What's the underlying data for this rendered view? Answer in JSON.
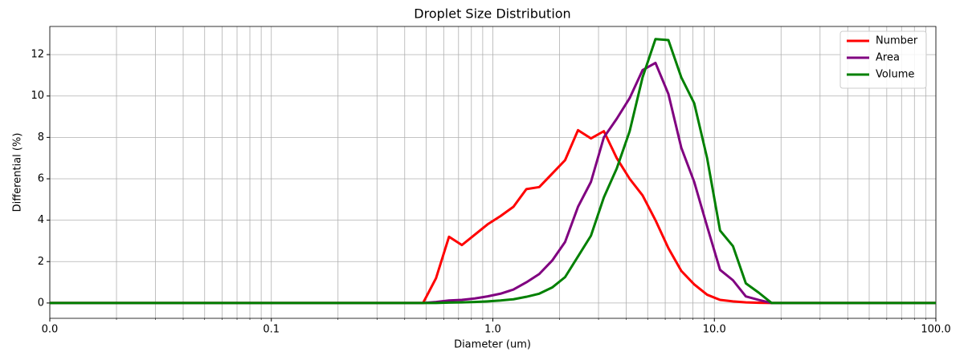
{
  "chart_data": {
    "type": "line",
    "title": "Droplet Size Distribution",
    "x_label": "Diameter (um)",
    "y_label": "Differential (%)",
    "x": [
      0.01,
      0.484,
      0.554,
      0.634,
      0.725,
      0.829,
      0.947,
      1.083,
      1.239,
      1.417,
      1.62,
      1.853,
      2.119,
      2.424,
      2.772,
      3.17,
      3.625,
      4.146,
      4.741,
      5.422,
      6.201,
      7.091,
      8.11,
      9.275,
      10.61,
      12.13,
      13.87,
      15.86,
      18.14,
      100
    ],
    "series": [
      {
        "name": "Number",
        "color": "#ff0000",
        "values": [
          0,
          0,
          1.2,
          3.2,
          2.8,
          3.3,
          3.8,
          4.2,
          4.65,
          5.5,
          5.6,
          6.25,
          6.9,
          8.35,
          7.95,
          8.3,
          7.0,
          6.0,
          5.2,
          4.0,
          2.65,
          1.55,
          0.9,
          0.4,
          0.15,
          0.08,
          0.03,
          0.01,
          0,
          0
        ]
      },
      {
        "name": "Area",
        "color": "#800080",
        "values": [
          0,
          0,
          0.05,
          0.12,
          0.15,
          0.22,
          0.32,
          0.45,
          0.65,
          1.0,
          1.4,
          2.05,
          2.95,
          4.65,
          5.85,
          8.0,
          8.9,
          9.9,
          11.25,
          11.6,
          10.1,
          7.5,
          5.85,
          3.7,
          1.6,
          1.1,
          0.32,
          0.15,
          0,
          0
        ]
      },
      {
        "name": "Volume",
        "color": "#008000",
        "values": [
          0,
          0,
          0,
          0.02,
          0.03,
          0.05,
          0.08,
          0.12,
          0.18,
          0.3,
          0.45,
          0.75,
          1.25,
          2.25,
          3.25,
          5.1,
          6.5,
          8.3,
          10.9,
          12.75,
          12.7,
          10.9,
          9.65,
          7.0,
          3.5,
          2.75,
          0.95,
          0.5,
          0,
          0
        ]
      }
    ],
    "xscale": "log",
    "xlim": [
      0.01,
      100
    ],
    "xticks": [
      {
        "value": 0.01,
        "label": "0.0"
      },
      0.1,
      {
        "value": 1,
        "label": "1.0"
      },
      {
        "value": 10,
        "label": "10.0"
      },
      {
        "value": 100,
        "label": "100.0"
      }
    ],
    "ylim": [
      -0.74,
      13.36
    ],
    "yticks": [
      0,
      2,
      4,
      6,
      8,
      10,
      12
    ],
    "grid": true,
    "minor_grid": true,
    "legend": "upper right"
  }
}
